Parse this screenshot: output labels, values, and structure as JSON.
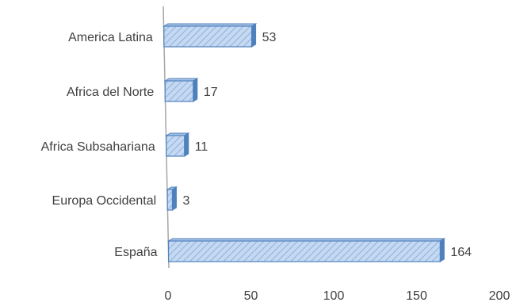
{
  "chart_data": {
    "type": "bar",
    "orientation": "horizontal",
    "categories": [
      "America Latina",
      "Africa del Norte",
      "Africa Subsahariana",
      "Europa Occidental",
      "España"
    ],
    "values": [
      53,
      17,
      11,
      3,
      164
    ],
    "data_labels": [
      "53",
      "17",
      "11",
      "3",
      "164"
    ],
    "title": "",
    "xlabel": "",
    "ylabel": "",
    "xlim": [
      0,
      200
    ],
    "x_ticks": [
      0,
      50,
      100,
      150,
      200
    ],
    "x_tick_labels": [
      "0",
      "50",
      "100",
      "150",
      "200"
    ],
    "grid": false,
    "legend": "none",
    "style": "3d-hatched",
    "colors": {
      "bar_fill": "#c6d9f1",
      "bar_hatch": "#8eb4e3",
      "bar_edge": "#4f81bd",
      "bar_top": "#a7c3e6",
      "axis": "#a6a6a6",
      "text": "#404040"
    }
  }
}
